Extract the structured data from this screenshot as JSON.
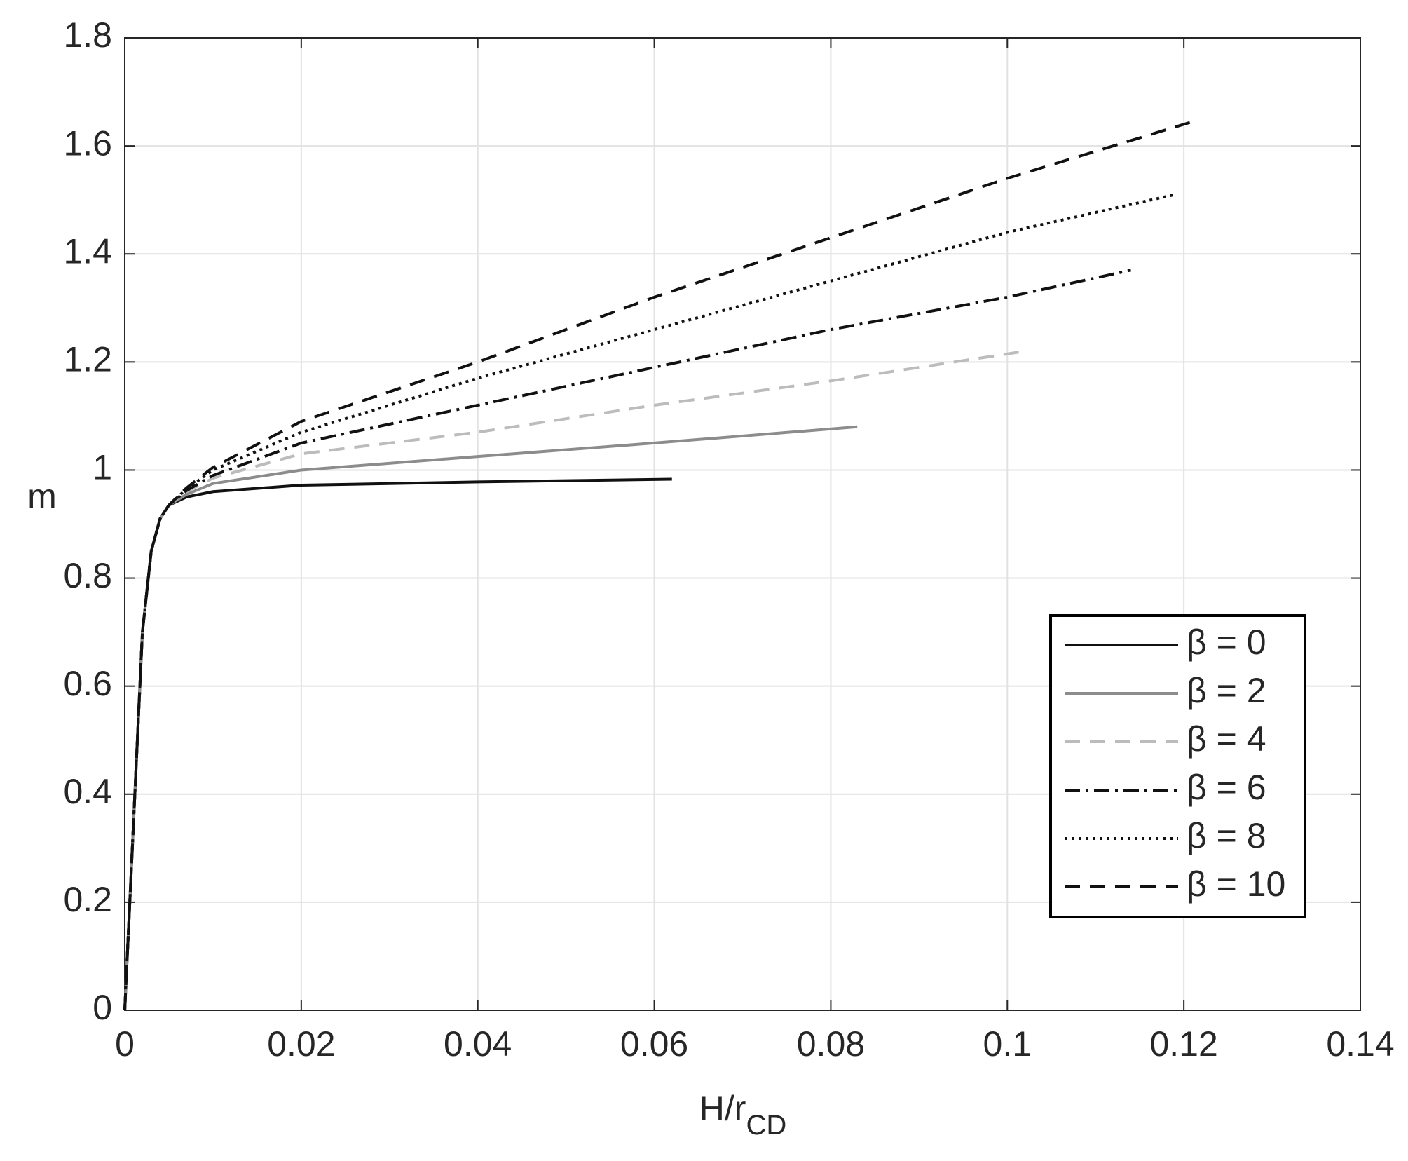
{
  "chart_data": {
    "type": "line",
    "xlabel": {
      "text": "H/r",
      "sub": "CD"
    },
    "ylabel": "m",
    "xlim": [
      0,
      0.14
    ],
    "xticks": [
      0,
      0.02,
      0.04,
      0.06,
      0.08,
      0.1,
      0.12,
      0.14
    ],
    "ylim": [
      0,
      1.8
    ],
    "yticks": [
      0,
      0.2,
      0.4,
      0.6,
      0.8,
      1,
      1.2,
      1.4,
      1.6,
      1.8
    ],
    "grid": true,
    "legend": "lower right",
    "series": [
      {
        "name": "β = 0",
        "color": "#111111",
        "dash": "solid",
        "x": [
          0,
          0.001,
          0.002,
          0.003,
          0.004,
          0.005,
          0.007,
          0.01,
          0.02,
          0.04,
          0.062
        ],
        "values": [
          0,
          0.35,
          0.7,
          0.85,
          0.91,
          0.935,
          0.95,
          0.96,
          0.972,
          0.978,
          0.983
        ]
      },
      {
        "name": "β = 2",
        "color": "#8c8c8c",
        "dash": "solid",
        "x": [
          0,
          0.001,
          0.002,
          0.003,
          0.004,
          0.005,
          0.007,
          0.01,
          0.02,
          0.04,
          0.06,
          0.083
        ],
        "values": [
          0,
          0.35,
          0.7,
          0.85,
          0.91,
          0.935,
          0.955,
          0.975,
          1.0,
          1.025,
          1.05,
          1.08
        ]
      },
      {
        "name": "β = 4",
        "color": "#bcbcbc",
        "dash": "dashed",
        "x": [
          0,
          0.001,
          0.002,
          0.003,
          0.004,
          0.005,
          0.007,
          0.01,
          0.02,
          0.04,
          0.06,
          0.08,
          0.102
        ],
        "values": [
          0,
          0.35,
          0.7,
          0.85,
          0.91,
          0.935,
          0.96,
          0.985,
          1.03,
          1.07,
          1.12,
          1.165,
          1.22
        ]
      },
      {
        "name": "β = 6",
        "color": "#111111",
        "dash": "dashdot",
        "x": [
          0,
          0.001,
          0.002,
          0.003,
          0.004,
          0.005,
          0.007,
          0.01,
          0.02,
          0.04,
          0.06,
          0.08,
          0.1,
          0.114
        ],
        "values": [
          0,
          0.35,
          0.7,
          0.85,
          0.91,
          0.935,
          0.962,
          0.99,
          1.05,
          1.12,
          1.19,
          1.26,
          1.32,
          1.37
        ]
      },
      {
        "name": "β = 8",
        "color": "#111111",
        "dash": "dotted",
        "x": [
          0,
          0.001,
          0.002,
          0.003,
          0.004,
          0.005,
          0.007,
          0.01,
          0.02,
          0.04,
          0.06,
          0.08,
          0.1,
          0.119
        ],
        "values": [
          0,
          0.35,
          0.7,
          0.85,
          0.91,
          0.935,
          0.965,
          1.0,
          1.07,
          1.17,
          1.26,
          1.35,
          1.44,
          1.51
        ]
      },
      {
        "name": "β = 10",
        "color": "#111111",
        "dash": "dashed",
        "x": [
          0,
          0.001,
          0.002,
          0.003,
          0.004,
          0.005,
          0.007,
          0.01,
          0.02,
          0.04,
          0.06,
          0.08,
          0.1,
          0.121
        ],
        "values": [
          0,
          0.35,
          0.7,
          0.85,
          0.91,
          0.935,
          0.967,
          1.005,
          1.09,
          1.2,
          1.32,
          1.43,
          1.54,
          1.645
        ]
      }
    ]
  }
}
